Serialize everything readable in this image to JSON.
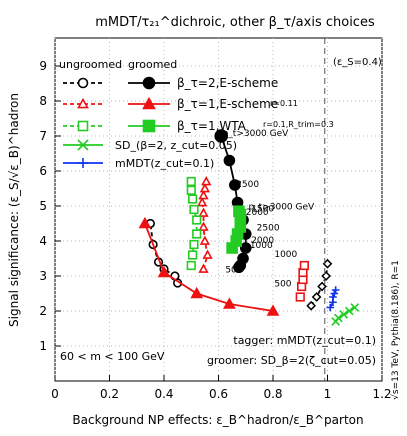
{
  "chart_data": {
    "type": "line",
    "title": "mMDT/τ₂₁^dichroic, other β_τ/axis choices",
    "xlabel": "Background NP effects: ε_B^hadron/ε_B^parton",
    "ylabel": "Signal significance: (ε_S/√ε_B)^hadron",
    "xlim": [
      0,
      1.2
    ],
    "ylim": [
      0,
      9.8
    ],
    "xticks": [
      "0",
      "0.2",
      "0.4",
      "0.6",
      "0.8",
      "1",
      "1.2"
    ],
    "yticks": [
      "1",
      "2",
      "3",
      "4",
      "5",
      "6",
      "7",
      "8",
      "9"
    ],
    "grid": true,
    "legend_position": "top-left",
    "legend_headers": {
      "ungroomed": "ungroomed",
      "groomed": "groomed"
    },
    "eps_s_label": "(ε_S=0.4)",
    "eps_s_line_x": 0.99,
    "mass_window": "60 < m < 100 GeV",
    "tagger_label": "tagger: mMDT(z_cut=0.1)",
    "groomer_label": "groomer: SD_β=2(ζ_cut=0.05)",
    "side_label": "√s=13 TeV, Pythia(8.186), R=1",
    "wta_note": "r=0.1,R_trim=0.3",
    "scheme_note": "r=0.11",
    "pt_labels": [
      {
        "text": "p_t>3000 GeV",
        "x": 0.615,
        "y": 7.0
      },
      {
        "text": "2500",
        "x": 0.665,
        "y": 5.55
      },
      {
        "text": "2000",
        "x": 0.7,
        "y": 4.75
      },
      {
        "text": "1000",
        "x": 0.715,
        "y": 3.8
      },
      {
        "text": "500",
        "x": 0.625,
        "y": 3.1
      },
      {
        "text": "p_t>3000 GeV",
        "x": 0.71,
        "y": 4.9
      },
      {
        "text": "2500",
        "x": 0.74,
        "y": 4.3
      },
      {
        "text": "2000",
        "x": 0.72,
        "y": 3.95
      },
      {
        "text": "1000",
        "x": 0.805,
        "y": 3.55
      },
      {
        "text": "1500",
        "x": 0.72,
        "y": 4.85
      },
      {
        "text": "500",
        "x": 0.805,
        "y": 2.7
      }
    ],
    "series": [
      {
        "name": "β_τ=2,E-scheme",
        "group": "ungroomed",
        "color": "#000000",
        "marker": "circle-open",
        "dash": "4,3",
        "x": [
          0.45,
          0.44,
          0.4,
          0.38,
          0.36,
          0.35
        ],
        "y": [
          2.8,
          3.0,
          3.2,
          3.4,
          3.9,
          4.5
        ]
      },
      {
        "name": "β_τ=1,E-scheme",
        "group": "ungroomed",
        "color": "#ee1111",
        "marker": "triangle-open",
        "dash": "4,3",
        "x": [
          0.545,
          0.56,
          0.55,
          0.545,
          0.545,
          0.54,
          0.545,
          0.55,
          0.555
        ],
        "y": [
          3.2,
          3.6,
          4.0,
          4.4,
          4.8,
          5.1,
          5.3,
          5.5,
          5.7
        ]
      },
      {
        "name": "β_τ=1,WTA",
        "group": "ungroomed",
        "color": "#22cc22",
        "marker": "square-open",
        "dash": "4,3",
        "x": [
          0.5,
          0.505,
          0.51,
          0.52,
          0.52,
          0.51,
          0.505,
          0.5,
          0.5
        ],
        "y": [
          3.3,
          3.6,
          3.9,
          4.2,
          4.6,
          4.9,
          5.2,
          5.45,
          5.7
        ]
      },
      {
        "name": "β_τ=2,E-scheme",
        "group": "groomed",
        "color": "#000000",
        "marker": "circle-filled",
        "dash": "",
        "x": [
          0.61,
          0.64,
          0.66,
          0.67,
          0.69,
          0.7,
          0.7,
          0.69,
          0.68,
          0.675
        ],
        "y": [
          7.0,
          6.3,
          5.6,
          5.1,
          4.6,
          4.2,
          3.8,
          3.5,
          3.3,
          3.25
        ]
      },
      {
        "name": "β_τ=1,E-scheme",
        "group": "groomed",
        "color": "#ee1111",
        "marker": "triangle-filled",
        "dash": "",
        "x": [
          0.33,
          0.4,
          0.52,
          0.64,
          0.8
        ],
        "y": [
          4.5,
          3.1,
          2.5,
          2.2,
          2.0
        ]
      },
      {
        "name": "β_τ=1,WTA",
        "group": "groomed",
        "color": "#22cc22",
        "marker": "square-filled",
        "dash": "",
        "x": [
          0.65,
          0.665,
          0.67,
          0.68,
          0.68,
          0.68,
          0.675
        ],
        "y": [
          3.8,
          4.0,
          4.2,
          4.4,
          4.6,
          4.75,
          4.85
        ]
      },
      {
        "name": "SD_(β=2, z_cut=0.05)",
        "group": "other",
        "color": "#22cc22",
        "marker": "x",
        "dash": "",
        "x": [
          1.03,
          1.04,
          1.06,
          1.08,
          1.1
        ],
        "y": [
          1.7,
          1.8,
          1.9,
          2.0,
          2.1
        ]
      },
      {
        "name": "mMDT(z_cut=0.1)",
        "group": "other",
        "color": "#1133ee",
        "marker": "plus",
        "dash": "",
        "x": [
          1.01,
          1.02,
          1.02,
          1.025,
          1.03
        ],
        "y": [
          2.1,
          2.25,
          2.4,
          2.5,
          2.6
        ]
      },
      {
        "name": "",
        "group": "tagger-right",
        "color": "#000000",
        "marker": "diamond-open",
        "dash": "4,3",
        "x": [
          0.94,
          0.96,
          0.98,
          0.995,
          1.0
        ],
        "y": [
          2.15,
          2.4,
          2.7,
          3.0,
          3.35
        ]
      },
      {
        "name": "",
        "group": "tagger-right",
        "color": "#ee1111",
        "marker": "square-open",
        "dash": "4,3",
        "x": [
          0.9,
          0.905,
          0.91,
          0.91,
          0.915
        ],
        "y": [
          2.4,
          2.7,
          2.9,
          3.1,
          3.3
        ]
      }
    ]
  }
}
